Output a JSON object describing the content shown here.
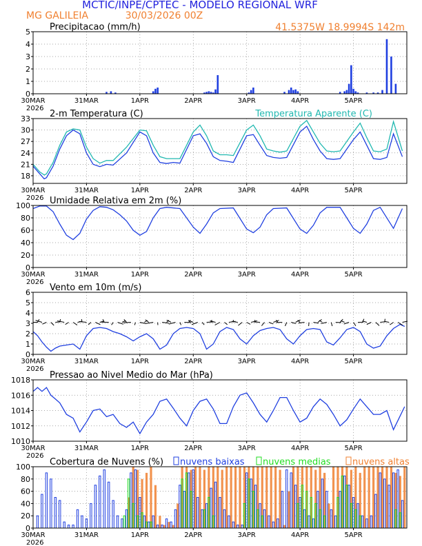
{
  "header": {
    "title": "MCTIC/INPE/CPTEC - MODELO REGIONAL WRF",
    "location": "MG GALILEIA",
    "run": "30/03/2026 00Z",
    "coords": "41.5375W 18.9994S 142m"
  },
  "colors": {
    "title": "#2222dd",
    "orange": "#f08030",
    "blue": "#1f3fe0",
    "cyan": "#20b8b0",
    "green": "#22dd22",
    "black": "#000000",
    "grid": "#888888"
  },
  "x_axis": {
    "ticks": [
      "30MAR",
      "31MAR",
      "1APR",
      "2APR",
      "3APR",
      "4APR",
      "5APR"
    ],
    "year": "2026",
    "hours_total": 168
  },
  "chart_data": [
    {
      "id": "precip",
      "type": "bar",
      "title": "Precipitacao (mm/h)",
      "ylim": [
        0,
        5
      ],
      "yticks": [
        "0",
        "1",
        "2",
        "3",
        "4",
        "5"
      ],
      "x_hours": [
        33,
        35,
        37,
        54,
        55,
        56,
        77,
        78,
        79,
        80,
        81,
        82,
        83,
        97,
        98,
        99,
        113,
        115,
        116,
        117,
        118,
        119,
        138,
        140,
        141,
        142,
        143,
        144,
        145,
        146,
        150,
        153,
        155,
        157,
        159,
        161,
        163
      ],
      "values": [
        0.15,
        0.2,
        0.1,
        0.2,
        0.4,
        0.5,
        0.1,
        0.15,
        0.2,
        0.15,
        0.1,
        0.35,
        1.5,
        0.1,
        0.3,
        0.5,
        0.15,
        0.3,
        0.5,
        0.3,
        0.35,
        0.2,
        0.15,
        0.2,
        0.3,
        0.8,
        2.3,
        0.4,
        0.2,
        0.1,
        0.1,
        0.1,
        0.1,
        0.3,
        4.4,
        3.0,
        0.8
      ]
    },
    {
      "id": "temp",
      "type": "line",
      "title": "2-m Temperatura (C)",
      "ylim": [
        16,
        33
      ],
      "yticks": [
        "18",
        "21",
        "24",
        "27",
        "30",
        "33"
      ],
      "series": [
        {
          "name": "2-m Temperatura (C)",
          "color": "blue",
          "x": [
            0,
            3,
            5,
            6,
            9,
            12,
            15,
            18,
            21,
            24,
            27,
            30,
            33,
            36,
            42,
            48,
            51,
            54,
            57,
            60,
            63,
            66,
            72,
            75,
            78,
            81,
            84,
            87,
            90,
            96,
            99,
            102,
            105,
            108,
            111,
            114,
            120,
            123,
            126,
            129,
            132,
            135,
            138,
            144,
            147,
            150,
            153,
            156,
            159,
            162,
            166
          ],
          "y": [
            20.5,
            18.5,
            17.2,
            17.5,
            20.5,
            25,
            28.5,
            30,
            29,
            24,
            21,
            20.4,
            21,
            20.8,
            24,
            29.5,
            28.5,
            24,
            21.5,
            21.2,
            21.5,
            21.3,
            28.5,
            29,
            26.5,
            23,
            22,
            21.8,
            21.5,
            28.5,
            28.8,
            26,
            23.3,
            22.8,
            22.6,
            22.8,
            29.5,
            31,
            27.5,
            24.5,
            22.5,
            22.3,
            22.5,
            27.5,
            29.5,
            26,
            22.5,
            22.3,
            22.8,
            29,
            23
          ]
        },
        {
          "name": "Temperatura Aparente (C)",
          "color": "cyan",
          "x": [
            0,
            3,
            5,
            6,
            9,
            12,
            15,
            18,
            21,
            24,
            27,
            30,
            33,
            36,
            42,
            48,
            51,
            54,
            57,
            60,
            63,
            66,
            72,
            75,
            78,
            81,
            84,
            87,
            90,
            96,
            99,
            102,
            105,
            108,
            111,
            114,
            120,
            123,
            126,
            129,
            132,
            135,
            138,
            144,
            147,
            150,
            153,
            156,
            159,
            162,
            166
          ],
          "y": [
            21,
            19,
            18.2,
            18.5,
            21.5,
            26,
            29.5,
            30.3,
            30,
            25.5,
            22.5,
            21.3,
            22,
            22,
            25.5,
            30,
            29.8,
            26,
            23,
            22.5,
            22.5,
            22.5,
            29.5,
            31.3,
            28.5,
            24.5,
            23.5,
            23.5,
            23.3,
            30,
            31.3,
            28.5,
            25,
            24.5,
            24.2,
            24.5,
            31,
            32.5,
            29.5,
            26.5,
            24.5,
            24.3,
            24.5,
            29.5,
            31.8,
            28,
            24.5,
            24.3,
            25,
            32.2,
            24.5
          ]
        }
      ],
      "legend": "Temperatura Aparente (C)"
    },
    {
      "id": "rh",
      "type": "line",
      "title": "Umidade Relativa em 2m (%)",
      "ylim": [
        0,
        100
      ],
      "yticks": [
        "0",
        "20",
        "40",
        "60",
        "80",
        "100"
      ],
      "series": [
        {
          "name": "Umidade Relativa em 2m (%)",
          "color": "blue",
          "x": [
            0,
            3,
            6,
            9,
            12,
            15,
            18,
            21,
            24,
            27,
            30,
            33,
            36,
            39,
            42,
            45,
            48,
            51,
            54,
            57,
            60,
            66,
            72,
            75,
            78,
            81,
            84,
            90,
            96,
            99,
            102,
            105,
            108,
            114,
            120,
            123,
            126,
            129,
            132,
            138,
            144,
            147,
            150,
            153,
            156,
            162,
            166
          ],
          "y": [
            95,
            99,
            99,
            90,
            70,
            52,
            45,
            55,
            78,
            92,
            98,
            97,
            93,
            85,
            75,
            60,
            52,
            58,
            80,
            95,
            97,
            95,
            65,
            55,
            70,
            88,
            95,
            96,
            62,
            56,
            65,
            85,
            95,
            96,
            62,
            55,
            68,
            88,
            97,
            97,
            63,
            55,
            70,
            92,
            97,
            63,
            95
          ]
        }
      ]
    },
    {
      "id": "wind",
      "type": "line",
      "title": "Vento em 10m (m/s)",
      "ylim": [
        0,
        6
      ],
      "yticks": [
        "0",
        "1",
        "2",
        "3",
        "4",
        "5",
        "6"
      ],
      "series": [
        {
          "name": "Vento em 10m (m/s)",
          "color": "blue",
          "x": [
            0,
            2,
            4,
            6,
            8,
            10,
            12,
            15,
            18,
            21,
            24,
            27,
            30,
            33,
            36,
            39,
            42,
            45,
            48,
            51,
            54,
            57,
            60,
            63,
            66,
            69,
            72,
            75,
            78,
            81,
            84,
            87,
            90,
            93,
            96,
            99,
            102,
            105,
            108,
            111,
            114,
            117,
            120,
            123,
            126,
            129,
            132,
            135,
            138,
            141,
            144,
            147,
            150,
            153,
            156,
            159,
            162,
            165,
            167
          ],
          "y": [
            2.2,
            1.8,
            1.2,
            0.7,
            0.3,
            0.6,
            0.8,
            0.9,
            1.0,
            0.5,
            1.8,
            2.5,
            2.6,
            2.5,
            2.2,
            2.0,
            1.7,
            1.3,
            1.7,
            2.0,
            1.5,
            0.5,
            0.9,
            2.0,
            2.5,
            2.6,
            2.5,
            2.0,
            0.5,
            1.0,
            2.2,
            2.6,
            2.4,
            1.5,
            1.0,
            1.8,
            2.3,
            2.5,
            2.6,
            2.4,
            1.5,
            1.0,
            1.8,
            2.4,
            2.5,
            2.4,
            1.2,
            0.9,
            1.6,
            2.4,
            2.6,
            2.2,
            1.0,
            0.6,
            0.8,
            1.8,
            2.5,
            2.9,
            2.7
          ]
        }
      ]
    },
    {
      "id": "pressure",
      "type": "line",
      "title": "Pressao ao Nivel Medio do Mar (hPa)",
      "ylim": [
        1010,
        1018
      ],
      "yticks": [
        "1010",
        "1012",
        "1014",
        "1016",
        "1018"
      ],
      "series": [
        {
          "name": "Pressao ao Nivel Medio do Mar (hPa)",
          "color": "blue",
          "x": [
            0,
            2,
            4,
            6,
            8,
            10,
            12,
            15,
            18,
            21,
            24,
            27,
            30,
            33,
            36,
            39,
            42,
            45,
            48,
            51,
            54,
            57,
            60,
            63,
            66,
            69,
            72,
            75,
            78,
            81,
            84,
            87,
            90,
            93,
            96,
            99,
            102,
            105,
            108,
            111,
            114,
            117,
            120,
            123,
            126,
            129,
            132,
            135,
            138,
            141,
            144,
            147,
            150,
            153,
            156,
            159,
            162,
            165,
            167
          ],
          "y": [
            1016.5,
            1017,
            1016.5,
            1017,
            1016,
            1015.5,
            1015,
            1013.5,
            1013,
            1011.2,
            1012.5,
            1014,
            1014.2,
            1013.2,
            1013.5,
            1012.3,
            1011.8,
            1012.5,
            1011,
            1012.5,
            1013.5,
            1015.2,
            1015.5,
            1014.3,
            1013,
            1012,
            1014,
            1015.2,
            1015.5,
            1014.2,
            1012.3,
            1012.3,
            1014.5,
            1016,
            1016.3,
            1015,
            1013.5,
            1012.5,
            1014,
            1015.7,
            1015.7,
            1014,
            1012.5,
            1013,
            1014.5,
            1015.5,
            1014.8,
            1013.5,
            1012,
            1012.8,
            1014.2,
            1015.5,
            1014.5,
            1013.5,
            1013.5,
            1014,
            1011.5,
            1013.3,
            1014.5
          ]
        }
      ]
    },
    {
      "id": "clouds",
      "type": "bar",
      "title": "Cobertura de Nuvens (%)",
      "ylim": [
        0,
        100
      ],
      "yticks": [
        "0",
        "20",
        "40",
        "60",
        "80",
        "100"
      ],
      "legend": [
        "nuvens baixas",
        "nuvens medias",
        "nuvens altas"
      ],
      "series": [
        {
          "name": "nuvens baixas",
          "color": "blue",
          "x": [
            2,
            4,
            6,
            8,
            10,
            12,
            14,
            16,
            18,
            20,
            22,
            24,
            26,
            28,
            30,
            32,
            34,
            36,
            38,
            40,
            42,
            44,
            46,
            48,
            50,
            52,
            54,
            56,
            58,
            60,
            62,
            64,
            66,
            68,
            70,
            72,
            74,
            76,
            78,
            80,
            82,
            84,
            86,
            88,
            90,
            92,
            94,
            96,
            98,
            100,
            102,
            104,
            106,
            108,
            110,
            112,
            114,
            116,
            118,
            120,
            122,
            124,
            126,
            128,
            130,
            132,
            134,
            136,
            138,
            140,
            142,
            144,
            146,
            148,
            150,
            152,
            154,
            156,
            158,
            160,
            162,
            164,
            166
          ],
          "y": [
            20,
            55,
            90,
            80,
            50,
            45,
            10,
            5,
            5,
            30,
            20,
            15,
            40,
            70,
            85,
            95,
            75,
            45,
            20,
            15,
            30,
            90,
            95,
            50,
            20,
            10,
            20,
            5,
            5,
            15,
            10,
            30,
            70,
            60,
            90,
            95,
            50,
            30,
            40,
            65,
            75,
            50,
            30,
            20,
            10,
            5,
            5,
            90,
            80,
            70,
            40,
            30,
            20,
            10,
            15,
            60,
            95,
            90,
            70,
            50,
            30,
            20,
            15,
            60,
            80,
            60,
            30,
            20,
            60,
            85,
            70,
            50,
            40,
            20,
            15,
            20,
            55,
            90,
            80,
            70,
            90,
            95,
            45
          ]
        },
        {
          "name": "nuvens medias",
          "color": "green",
          "x": [
            41,
            43,
            45,
            47,
            49,
            51,
            53,
            67,
            69,
            71,
            77,
            79,
            81,
            95,
            97,
            99,
            101,
            103,
            119,
            121,
            123,
            125,
            127,
            129,
            131,
            137,
            139,
            141,
            143,
            145,
            147,
            163,
            165
          ],
          "y": [
            20,
            80,
            40,
            20,
            25,
            10,
            10,
            80,
            90,
            60,
            30,
            50,
            20,
            40,
            80,
            60,
            30,
            20,
            40,
            70,
            60,
            50,
            40,
            30,
            20,
            50,
            85,
            70,
            40,
            30,
            20,
            30,
            25
          ]
        },
        {
          "name": "nuvens altas",
          "color": "orange",
          "x": [
            43,
            45,
            47,
            49,
            51,
            53,
            55,
            57,
            59,
            61,
            63,
            65,
            67,
            69,
            71,
            73,
            75,
            77,
            79,
            81,
            83,
            85,
            87,
            89,
            91,
            93,
            95,
            97,
            99,
            101,
            103,
            105,
            107,
            109,
            111,
            113,
            115,
            117,
            119,
            121,
            123,
            125,
            127,
            129,
            131,
            133,
            135,
            137,
            139,
            141,
            143,
            145,
            147,
            149,
            151,
            153,
            155,
            157,
            159,
            161,
            163,
            165,
            167
          ],
          "y": [
            50,
            100,
            95,
            80,
            90,
            100,
            70,
            20,
            5,
            10,
            5,
            40,
            100,
            100,
            95,
            100,
            100,
            95,
            100,
            100,
            100,
            95,
            100,
            100,
            100,
            100,
            100,
            100,
            100,
            100,
            100,
            100,
            100,
            100,
            95,
            5,
            60,
            100,
            100,
            100,
            100,
            100,
            95,
            100,
            90,
            40,
            100,
            100,
            100,
            100,
            95,
            100,
            90,
            100,
            100,
            100,
            100,
            100,
            100,
            100,
            90,
            85,
            100
          ]
        }
      ]
    }
  ]
}
